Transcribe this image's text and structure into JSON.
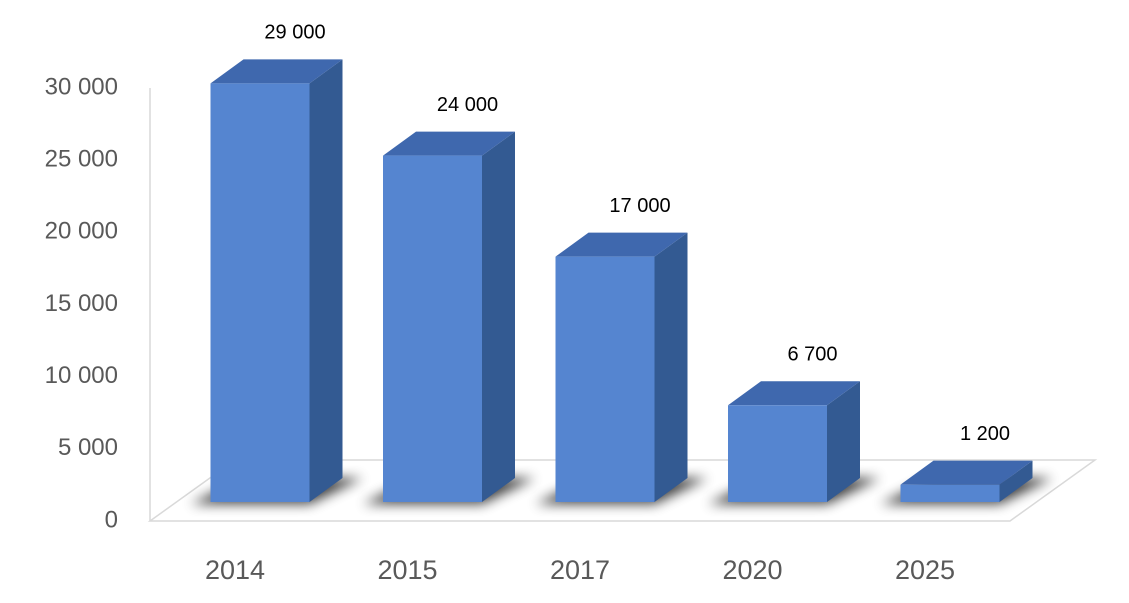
{
  "chart_data": {
    "type": "bar3d",
    "categories": [
      "2014",
      "2015",
      "2017",
      "2020",
      "2025"
    ],
    "values": [
      29000,
      24000,
      17000,
      6700,
      1200
    ],
    "value_labels": [
      "29 000",
      "24 000",
      "17 000",
      "6 700",
      "1 200"
    ],
    "color": "#5585d0",
    "ylim": [
      0,
      30000
    ],
    "yticks": [
      0,
      {
        "value": 5000,
        "label": "5 000"
      },
      {
        "value": 10000,
        "label": "10 000"
      },
      {
        "value": 15000,
        "label": "15 000"
      },
      {
        "value": 20000,
        "label": "20 000"
      },
      {
        "value": 25000,
        "label": "25 000"
      },
      {
        "value": 30000,
        "label": "30 000"
      }
    ]
  }
}
